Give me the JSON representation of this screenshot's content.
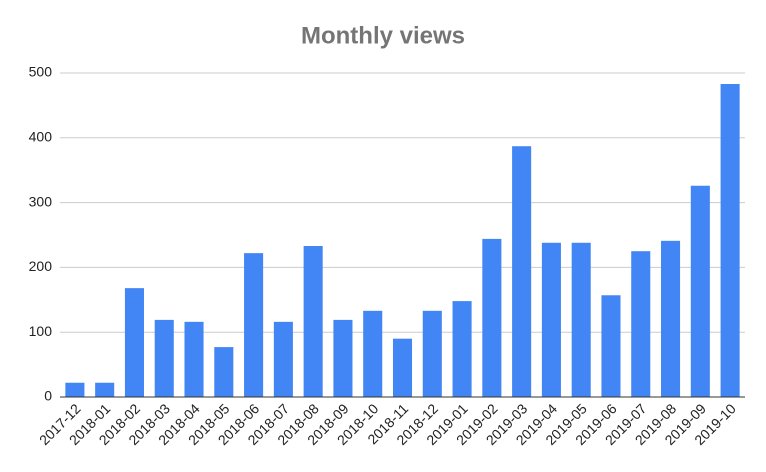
{
  "chart_data": {
    "type": "bar",
    "title": "Monthly views",
    "categories": [
      "2017-12",
      "2018-01",
      "2018-02",
      "2018-03",
      "2018-04",
      "2018-05",
      "2018-06",
      "2018-07",
      "2018-08",
      "2018-09",
      "2018-10",
      "2018-11",
      "2018-12",
      "2019-01",
      "2019-02",
      "2019-03",
      "2019-04",
      "2019-05",
      "2019-06",
      "2019-07",
      "2019-08",
      "2019-09",
      "2019-10"
    ],
    "values": [
      22,
      22,
      168,
      119,
      116,
      77,
      222,
      116,
      233,
      119,
      133,
      90,
      133,
      148,
      244,
      387,
      238,
      238,
      157,
      225,
      241,
      326,
      483
    ],
    "color": "#4285f4",
    "ylim": [
      0,
      500
    ],
    "yticks": [
      0,
      100,
      200,
      300,
      400,
      500
    ],
    "grid": true
  }
}
